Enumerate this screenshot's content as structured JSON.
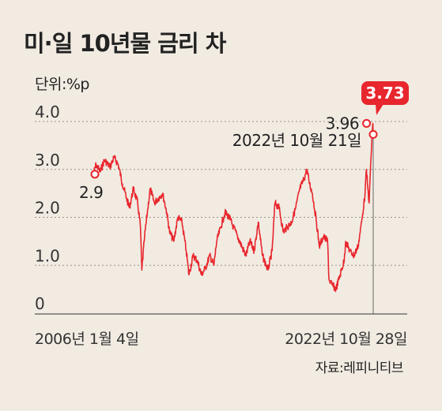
{
  "chart_data": {
    "type": "line",
    "title": "미·일 10년물 금리 차",
    "unit_label": "단위:%p",
    "source": "자료:레피니티브",
    "ylim": [
      0,
      4.0
    ],
    "y_ticks": [
      "0",
      "1.0",
      "2.0",
      "3.0",
      "4.0"
    ],
    "y_tick_values": [
      0,
      1.0,
      2.0,
      3.0,
      4.0
    ],
    "x_start_label": "2006년 1월 4일",
    "x_end_label": "2022년 10월 28일",
    "grid": true,
    "series": [
      {
        "x": [
          "2006-01",
          "2006-03",
          "2006-06",
          "2006-09",
          "2007-01",
          "2007-04",
          "2007-07",
          "2007-10",
          "2008-01",
          "2008-03",
          "2008-06",
          "2008-09",
          "2008-11",
          "2008-12",
          "2009-02",
          "2009-04",
          "2009-06",
          "2009-09",
          "2009-12",
          "2010-03",
          "2010-06",
          "2010-08",
          "2010-11",
          "2011-02",
          "2011-05",
          "2011-08",
          "2011-10",
          "2012-01",
          "2012-04",
          "2012-07",
          "2012-10",
          "2013-01",
          "2013-04",
          "2013-06",
          "2013-09",
          "2013-12",
          "2014-03",
          "2014-06",
          "2014-09",
          "2014-12",
          "2015-03",
          "2015-06",
          "2015-09",
          "2015-12",
          "2016-03",
          "2016-07",
          "2016-10",
          "2016-12",
          "2017-03",
          "2017-06",
          "2017-09",
          "2017-12",
          "2018-03",
          "2018-06",
          "2018-09",
          "2018-11",
          "2019-01",
          "2019-03",
          "2019-06",
          "2019-08",
          "2019-11",
          "2020-02",
          "2020-03",
          "2020-05",
          "2020-08",
          "2020-11",
          "2021-02",
          "2021-03",
          "2021-06",
          "2021-09",
          "2021-12",
          "2022-01",
          "2022-03",
          "2022-05",
          "2022-06",
          "2022-07",
          "2022-08",
          "2022-09",
          "2022-10-21",
          "2022-10-28"
        ],
        "values": [
          2.9,
          3.1,
          2.95,
          3.2,
          3.05,
          3.25,
          3.1,
          2.7,
          2.4,
          2.2,
          2.6,
          2.3,
          1.8,
          0.9,
          1.6,
          2.1,
          2.6,
          2.3,
          2.4,
          2.5,
          2.1,
          1.7,
          1.5,
          2.0,
          1.9,
          1.3,
          0.8,
          1.2,
          1.1,
          0.8,
          0.95,
          1.2,
          1.0,
          1.5,
          1.8,
          2.1,
          2.0,
          1.8,
          1.6,
          1.4,
          1.2,
          1.5,
          1.3,
          1.9,
          1.2,
          0.9,
          1.3,
          2.3,
          2.2,
          1.7,
          1.8,
          1.9,
          2.2,
          2.6,
          2.8,
          3.0,
          2.7,
          2.5,
          1.9,
          1.4,
          1.6,
          1.5,
          0.7,
          0.6,
          0.5,
          0.8,
          1.1,
          1.5,
          1.3,
          1.2,
          1.4,
          1.6,
          2.0,
          2.5,
          3.0,
          2.6,
          2.3,
          3.1,
          3.96,
          3.73
        ]
      }
    ],
    "annotations": {
      "start": {
        "label": "2.9",
        "x": "2006-01",
        "value": 2.9
      },
      "peak": {
        "label": "3.96",
        "x": "2022-10-21",
        "value": 3.96,
        "date_label": "2022년 10월 21일"
      },
      "latest": {
        "label": "3.73",
        "x": "2022-10-28",
        "value": 3.73
      }
    }
  },
  "colors": {
    "line": "#e8262d",
    "background": "#f1ebe2",
    "grid": "#9a938a",
    "badge": "#e8262d"
  }
}
